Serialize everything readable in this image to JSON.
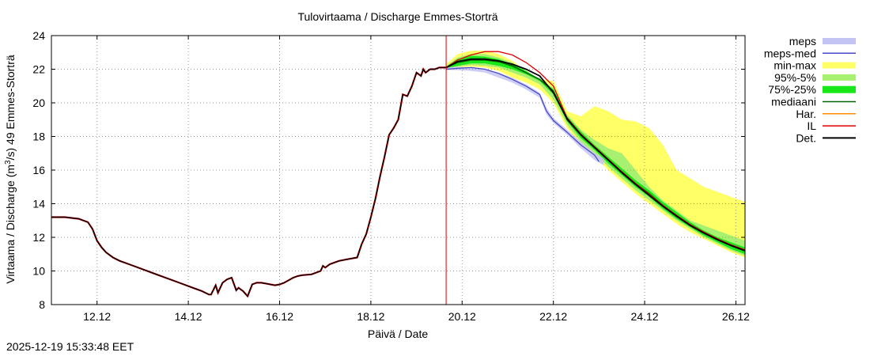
{
  "chart_data": {
    "type": "line",
    "title": "Tulovirtaama / Discharge  Emmes-Storträ",
    "xlabel": "Päivä / Date",
    "ylabel_parts": [
      "Virtaama / Discharge (m",
      "3",
      "/s)  49 Emmes-Storträ"
    ],
    "ylabel": "Virtaama / Discharge (m3/s)  49 Emmes-Storträ",
    "xlim": [
      11.0,
      26.2
    ],
    "ylim": [
      8,
      24
    ],
    "xticks": [
      {
        "v": 12.0,
        "label": "12.12"
      },
      {
        "v": 14.0,
        "label": "14.12"
      },
      {
        "v": 16.0,
        "label": "16.12"
      },
      {
        "v": 18.0,
        "label": "18.12"
      },
      {
        "v": 20.0,
        "label": "20.12"
      },
      {
        "v": 22.0,
        "label": "22.12"
      },
      {
        "v": 24.0,
        "label": "24.12"
      },
      {
        "v": 26.0,
        "label": "26.12"
      }
    ],
    "yticks": [
      8,
      10,
      12,
      14,
      16,
      18,
      20,
      22,
      24
    ],
    "grid": true,
    "forecast_start_x": 19.65,
    "legend": [
      {
        "key": "meps",
        "label": "meps",
        "color": "#c4c4f4",
        "kind": "band"
      },
      {
        "key": "meps_med",
        "label": "meps-med",
        "color": "#4848c8",
        "kind": "line"
      },
      {
        "key": "minmax",
        "label": "min-max",
        "color": "#ffff66",
        "kind": "band"
      },
      {
        "key": "p95_5",
        "label": "95%-5%",
        "color": "#a8f070",
        "kind": "band"
      },
      {
        "key": "p75_25",
        "label": "75%-25%",
        "color": "#18e818",
        "kind": "band"
      },
      {
        "key": "median",
        "label": "mediaani",
        "color": "#006400",
        "kind": "line"
      },
      {
        "key": "har",
        "label": "Har.",
        "color": "#ff8c00",
        "kind": "line"
      },
      {
        "key": "il",
        "label": "IL",
        "color": "#e00000",
        "kind": "line"
      },
      {
        "key": "det",
        "label": "Det.",
        "color": "#000000",
        "kind": "line"
      }
    ],
    "observed": {
      "x": [
        11.0,
        11.3,
        11.6,
        11.8,
        11.9,
        12.0,
        12.1,
        12.2,
        12.35,
        12.5,
        12.7,
        13.0,
        13.3,
        13.6,
        13.9,
        14.1,
        14.3,
        14.45,
        14.5,
        14.6,
        14.65,
        14.75,
        14.85,
        14.95,
        15.05,
        15.1,
        15.2,
        15.3,
        15.4,
        15.5,
        15.55,
        15.6,
        15.7,
        15.8,
        15.9,
        16.0,
        16.1,
        16.2,
        16.3,
        16.4,
        16.5,
        16.7,
        16.9,
        16.95,
        17.0,
        17.1,
        17.3,
        17.5,
        17.7,
        17.8,
        17.9,
        18.0,
        18.1,
        18.2,
        18.3,
        18.4,
        18.5,
        18.6,
        18.7,
        18.8,
        18.9,
        19.0,
        19.1,
        19.15,
        19.2,
        19.3,
        19.4,
        19.5,
        19.65
      ],
      "y": [
        13.2,
        13.2,
        13.1,
        12.9,
        12.5,
        11.8,
        11.4,
        11.1,
        10.8,
        10.6,
        10.4,
        10.1,
        9.8,
        9.5,
        9.2,
        9.0,
        8.8,
        8.6,
        8.6,
        9.15,
        8.7,
        9.3,
        9.5,
        9.6,
        8.85,
        9.0,
        8.8,
        8.5,
        9.2,
        9.3,
        9.3,
        9.3,
        9.25,
        9.2,
        9.15,
        9.2,
        9.3,
        9.45,
        9.6,
        9.7,
        9.75,
        9.8,
        10.0,
        10.3,
        10.2,
        10.4,
        10.6,
        10.7,
        10.8,
        11.6,
        12.2,
        13.2,
        14.3,
        15.6,
        16.8,
        18.1,
        18.5,
        19.0,
        20.5,
        20.4,
        21.0,
        21.8,
        21.6,
        22.0,
        21.8,
        22.0,
        22.0,
        22.1,
        22.1
      ]
    },
    "forecast_x": [
      19.65,
      19.9,
      20.2,
      20.5,
      20.8,
      21.1,
      21.4,
      21.7,
      22.0,
      22.3,
      22.6,
      22.9,
      23.2,
      23.5,
      23.8,
      24.1,
      24.4,
      24.7,
      25.0,
      25.3,
      25.6,
      25.9,
      26.2
    ],
    "minmax": {
      "lo": [
        22.0,
        22.1,
        22.15,
        22.1,
        21.9,
        21.5,
        21.2,
        20.8,
        20.0,
        18.5,
        17.5,
        16.8,
        16.0,
        15.3,
        14.6,
        14.0,
        13.4,
        12.8,
        12.3,
        11.9,
        11.5,
        11.1,
        10.8
      ],
      "hi": [
        22.3,
        22.9,
        23.1,
        23.1,
        22.9,
        22.5,
        21.9,
        21.4,
        21.3,
        19.5,
        19.2,
        19.8,
        19.5,
        19.0,
        18.9,
        18.5,
        17.5,
        16.0,
        15.5,
        15.0,
        14.7,
        14.4,
        14.1
      ]
    },
    "p95_5": {
      "lo": [
        22.0,
        22.15,
        22.25,
        22.2,
        22.1,
        21.8,
        21.5,
        21.1,
        20.2,
        18.7,
        17.7,
        17.0,
        16.2,
        15.5,
        14.8,
        14.2,
        13.6,
        13.0,
        12.5,
        12.0,
        11.6,
        11.2,
        10.9
      ],
      "hi": [
        22.2,
        22.7,
        22.9,
        22.9,
        22.7,
        22.4,
        21.9,
        21.4,
        20.9,
        19.3,
        18.4,
        17.8,
        17.3,
        17.0,
        16.0,
        15.0,
        14.2,
        13.6,
        13.0,
        12.7,
        12.4,
        12.1,
        11.8
      ]
    },
    "p75_25": {
      "lo": [
        22.05,
        22.2,
        22.35,
        22.35,
        22.2,
        22.0,
        21.7,
        21.3,
        20.5,
        18.9,
        17.9,
        17.2,
        16.4,
        15.7,
        15.0,
        14.4,
        13.7,
        13.1,
        12.6,
        12.1,
        11.7,
        11.3,
        11.0
      ],
      "hi": [
        22.15,
        22.6,
        22.8,
        22.75,
        22.6,
        22.3,
        21.9,
        21.4,
        20.8,
        19.2,
        18.3,
        17.5,
        16.8,
        16.1,
        15.4,
        14.8,
        14.1,
        13.5,
        12.9,
        12.4,
        12.0,
        11.7,
        11.4
      ]
    },
    "median": [
      22.1,
      22.4,
      22.55,
      22.55,
      22.45,
      22.2,
      21.8,
      21.4,
      20.7,
      19.0,
      18.1,
      17.35,
      16.6,
      15.9,
      15.2,
      14.6,
      13.9,
      13.3,
      12.75,
      12.3,
      11.9,
      11.5,
      11.2
    ],
    "det": [
      22.1,
      22.45,
      22.6,
      22.6,
      22.5,
      22.3,
      22.0,
      21.6,
      20.6,
      19.05,
      18.1,
      17.35,
      16.6,
      15.85,
      15.15,
      14.5,
      13.85,
      13.25,
      12.7,
      12.25,
      11.85,
      11.5,
      11.2
    ],
    "il": [
      22.1,
      22.55,
      22.85,
      23.05,
      23.05,
      22.85,
      22.4,
      21.8,
      21.0,
      19.1,
      18.15,
      17.4,
      16.65,
      15.9,
      15.2,
      14.55,
      13.9,
      13.3,
      12.75,
      12.3,
      11.9,
      11.55,
      11.25
    ],
    "meps": {
      "x": [
        19.65,
        19.9,
        20.2,
        20.5,
        20.8,
        21.1,
        21.4,
        21.7,
        21.85,
        22.0,
        22.3,
        22.6,
        22.9,
        23.1
      ],
      "lo": [
        21.95,
        21.95,
        21.9,
        21.8,
        21.5,
        21.2,
        20.8,
        20.3,
        19.3,
        18.8,
        18.1,
        17.3,
        16.6,
        16.3
      ],
      "hi": [
        22.1,
        22.15,
        22.1,
        22.0,
        21.8,
        21.5,
        21.1,
        20.6,
        19.7,
        19.1,
        18.4,
        17.7,
        17.0,
        16.7
      ]
    },
    "meps_med": {
      "x": [
        19.65,
        19.9,
        20.2,
        20.5,
        20.8,
        21.1,
        21.4,
        21.7,
        21.85,
        22.0,
        22.3,
        22.6,
        22.9,
        23.0
      ],
      "y": [
        22.0,
        22.05,
        22.1,
        22.0,
        21.75,
        21.4,
        21.0,
        20.5,
        19.5,
        18.95,
        18.25,
        17.5,
        16.9,
        16.5
      ]
    }
  },
  "timestamp": "2025-12-19 15:33:48 EET"
}
